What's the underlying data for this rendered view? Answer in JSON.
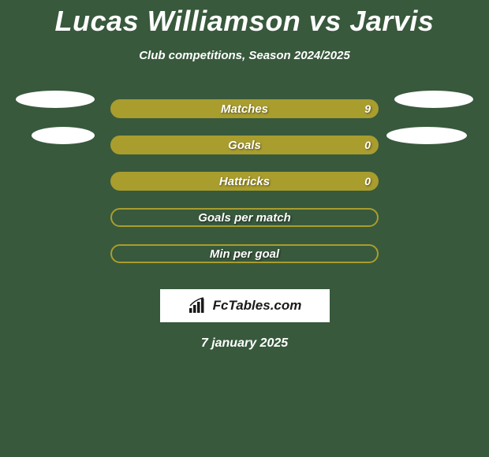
{
  "title": "Lucas Williamson vs Jarvis",
  "subtitle": "Club competitions, Season 2024/2025",
  "colors": {
    "background": "#38593c",
    "bar_fill": "#a99d2e",
    "text": "#ffffff",
    "ellipse": "#ffffff",
    "logo_bg": "#ffffff",
    "logo_text": "#1a1a1a"
  },
  "stats": [
    {
      "label": "Matches",
      "value_right": "9",
      "filled": true,
      "ellipse_left": true,
      "ellipse_right": true,
      "ellipse_variant": 1
    },
    {
      "label": "Goals",
      "value_right": "0",
      "filled": true,
      "ellipse_left": true,
      "ellipse_right": true,
      "ellipse_variant": 2
    },
    {
      "label": "Hattricks",
      "value_right": "0",
      "filled": true,
      "ellipse_left": false,
      "ellipse_right": false
    },
    {
      "label": "Goals per match",
      "value_right": "",
      "filled": false,
      "ellipse_left": false,
      "ellipse_right": false
    },
    {
      "label": "Min per goal",
      "value_right": "",
      "filled": false,
      "ellipse_left": false,
      "ellipse_right": false
    }
  ],
  "logo_text": "FcTables.com",
  "date": "7 january 2025"
}
